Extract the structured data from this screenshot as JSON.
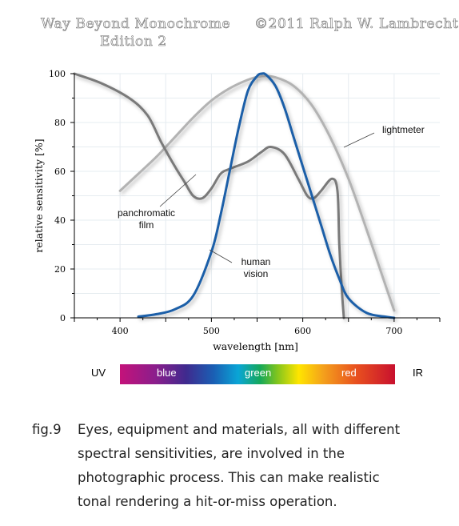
{
  "header": {
    "book_title": "Way Beyond Monochrome",
    "edition": "Edition 2",
    "copyright": "©2011   Ralph W. Lambrecht"
  },
  "chart_data": {
    "type": "line",
    "title": "",
    "xlabel": "wavelength [nm]",
    "ylabel": "relative sensitivity [%]",
    "xlim": [
      350,
      750
    ],
    "ylim": [
      0,
      100
    ],
    "xticks": [
      400,
      500,
      600,
      700
    ],
    "yticks": [
      0,
      20,
      40,
      60,
      80,
      100
    ],
    "grid": true,
    "series": [
      {
        "name": "lightmeter",
        "color": "#b3b3b3",
        "x": [
          400,
          420,
          440,
          460,
          480,
          500,
          520,
          540,
          555,
          570,
          590,
          610,
          630,
          650,
          670,
          690,
          700
        ],
        "y": [
          52,
          59,
          66,
          74,
          82,
          89,
          94,
          97.5,
          99,
          98.5,
          95,
          87,
          74,
          57,
          36,
          14,
          3
        ]
      },
      {
        "name": "panchromatic film",
        "color": "#7a7a7a",
        "x": [
          350,
          380,
          410,
          430,
          445,
          460,
          470,
          480,
          490,
          500,
          510,
          520,
          540,
          555,
          565,
          580,
          595,
          605,
          612,
          620,
          632,
          638,
          640,
          643,
          645
        ],
        "y": [
          100,
          96,
          90,
          83,
          72,
          62,
          56,
          50,
          49,
          53,
          59,
          61,
          64,
          68,
          70,
          67,
          57,
          50,
          49,
          52,
          57,
          52,
          30,
          10,
          0
        ]
      },
      {
        "name": "human vision",
        "color": "#1a5ea8",
        "x": [
          420,
          440,
          460,
          480,
          500,
          510,
          520,
          530,
          540,
          550,
          555,
          560,
          570,
          580,
          590,
          600,
          610,
          620,
          630,
          640,
          650,
          670,
          690,
          700
        ],
        "y": [
          0.5,
          1.5,
          3.5,
          9,
          27,
          42,
          60,
          78,
          93,
          99,
          100,
          99.5,
          95,
          86,
          74,
          62,
          50,
          38,
          26,
          16,
          8,
          2,
          0.5,
          0
        ]
      }
    ],
    "annotations": [
      {
        "id": "lightmeter",
        "lines": [
          "lightmeter"
        ]
      },
      {
        "id": "film",
        "lines": [
          "panchromatic",
          "film"
        ]
      },
      {
        "id": "vision",
        "lines": [
          "human",
          "vision"
        ]
      }
    ]
  },
  "spectrum": {
    "left_label": "UV",
    "right_label": "IR",
    "bands": [
      {
        "label": "blue",
        "color": "#ffffff"
      },
      {
        "label": "green",
        "color": "#ffffff"
      },
      {
        "label": "red",
        "color": "#ffffff"
      }
    ]
  },
  "caption": {
    "number": "fig.9",
    "lines": [
      "Eyes, equipment and materials, all with different",
      "spectral sensitivities, are involved in the",
      "photographic process. This can make realistic",
      "tonal rendering a hit-or-miss operation."
    ]
  }
}
